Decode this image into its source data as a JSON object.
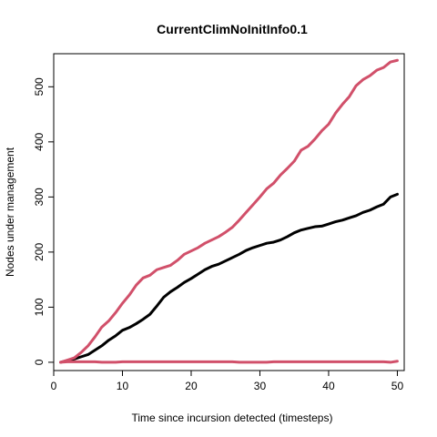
{
  "chart_data": {
    "type": "line",
    "title": "CurrentClimNoInitInfo0.1",
    "xlabel": "Time since incursion detected (timesteps)",
    "ylabel": "Nodes under management",
    "xlim": [
      0,
      51
    ],
    "ylim": [
      -15,
      560
    ],
    "xticks": [
      0,
      10,
      20,
      30,
      40,
      50
    ],
    "yticks": [
      0,
      100,
      200,
      300,
      400,
      500
    ],
    "grid": false,
    "legend": "none",
    "series": [
      {
        "color": "#000000",
        "x": [
          1,
          2,
          3,
          4,
          5,
          6,
          7,
          8,
          9,
          10,
          11,
          12,
          13,
          14,
          15,
          16,
          17,
          18,
          19,
          20,
          21,
          22,
          23,
          24,
          25,
          26,
          27,
          28,
          29,
          30,
          31,
          32,
          33,
          34,
          35,
          36,
          37,
          38,
          39,
          40,
          41,
          42,
          43,
          44,
          45,
          46,
          47,
          48,
          49,
          50
        ],
        "values": [
          0,
          3,
          6,
          10,
          14,
          22,
          30,
          40,
          48,
          58,
          63,
          70,
          78,
          87,
          102,
          118,
          128,
          136,
          145,
          152,
          160,
          168,
          174,
          178,
          184,
          190,
          196,
          203,
          208,
          212,
          216,
          218,
          222,
          228,
          235,
          240,
          243,
          246,
          247,
          251,
          255,
          258,
          262,
          266,
          272,
          276,
          282,
          287,
          300,
          305
        ]
      },
      {
        "color": "#d1506a",
        "x": [
          1,
          2,
          3,
          4,
          5,
          6,
          7,
          8,
          9,
          10,
          11,
          12,
          13,
          14,
          15,
          16,
          17,
          18,
          19,
          20,
          21,
          22,
          23,
          24,
          25,
          26,
          27,
          28,
          29,
          30,
          31,
          32,
          33,
          34,
          35,
          36,
          37,
          38,
          39,
          40,
          41,
          42,
          43,
          44,
          45,
          46,
          47,
          48,
          49,
          50
        ],
        "values": [
          0,
          4,
          8,
          18,
          30,
          46,
          64,
          75,
          90,
          107,
          122,
          140,
          153,
          158,
          168,
          172,
          176,
          185,
          196,
          202,
          208,
          216,
          222,
          228,
          236,
          245,
          258,
          272,
          286,
          300,
          315,
          325,
          340,
          352,
          365,
          385,
          392,
          405,
          420,
          432,
          452,
          468,
          482,
          502,
          513,
          520,
          530,
          535,
          545,
          548
        ]
      },
      {
        "color": "#d1506a",
        "x": [
          1,
          2,
          3,
          4,
          5,
          6,
          7,
          8,
          9,
          10,
          11,
          12,
          13,
          14,
          15,
          16,
          17,
          18,
          19,
          20,
          21,
          22,
          23,
          24,
          25,
          26,
          27,
          28,
          29,
          30,
          31,
          32,
          33,
          34,
          35,
          36,
          37,
          38,
          39,
          40,
          41,
          42,
          43,
          44,
          45,
          46,
          47,
          48,
          49,
          50
        ],
        "values": [
          0,
          1,
          1,
          1,
          1,
          1,
          0,
          0,
          0,
          1,
          1,
          1,
          1,
          1,
          1,
          1,
          1,
          1,
          1,
          1,
          1,
          1,
          1,
          1,
          1,
          1,
          0,
          0,
          0,
          0,
          0,
          1,
          1,
          1,
          1,
          1,
          1,
          1,
          1,
          1,
          1,
          1,
          1,
          1,
          1,
          1,
          1,
          1,
          0,
          2
        ]
      }
    ]
  }
}
